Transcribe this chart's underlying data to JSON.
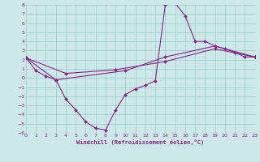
{
  "xlabel": "Windchill (Refroidissement éolien,°C)",
  "xlim": [
    0,
    23
  ],
  "ylim": [
    -6,
    8
  ],
  "xticks": [
    0,
    1,
    2,
    3,
    4,
    5,
    6,
    7,
    8,
    9,
    10,
    11,
    12,
    13,
    14,
    15,
    16,
    17,
    18,
    19,
    20,
    21,
    22,
    23
  ],
  "yticks": [
    -6,
    -5,
    -4,
    -3,
    -2,
    -1,
    0,
    1,
    2,
    3,
    4,
    5,
    6,
    7,
    8
  ],
  "bg_color": "#cce8e8",
  "grid_color": "#99cccc",
  "line_color": "#882288",
  "line1_x": [
    0,
    1,
    2,
    3,
    4,
    5,
    6,
    7,
    8,
    9,
    10,
    11,
    12,
    13,
    14,
    15,
    16,
    17,
    18,
    19,
    20,
    21,
    22,
    23
  ],
  "line1_y": [
    2.2,
    0.8,
    0.2,
    -0.2,
    -2.3,
    -3.5,
    -4.8,
    -5.5,
    -5.7,
    -3.5,
    -1.8,
    -1.2,
    -0.8,
    -0.3,
    8.0,
    8.2,
    6.8,
    4.0,
    4.0,
    3.5,
    3.2,
    2.8,
    2.3,
    2.3
  ],
  "line2_x": [
    0,
    3,
    10,
    14,
    19,
    23
  ],
  "line2_y": [
    2.2,
    -0.2,
    0.8,
    2.3,
    3.5,
    2.3
  ],
  "line3_x": [
    0,
    4,
    9,
    14,
    19,
    23
  ],
  "line3_y": [
    2.2,
    0.5,
    0.9,
    1.8,
    3.2,
    2.3
  ]
}
